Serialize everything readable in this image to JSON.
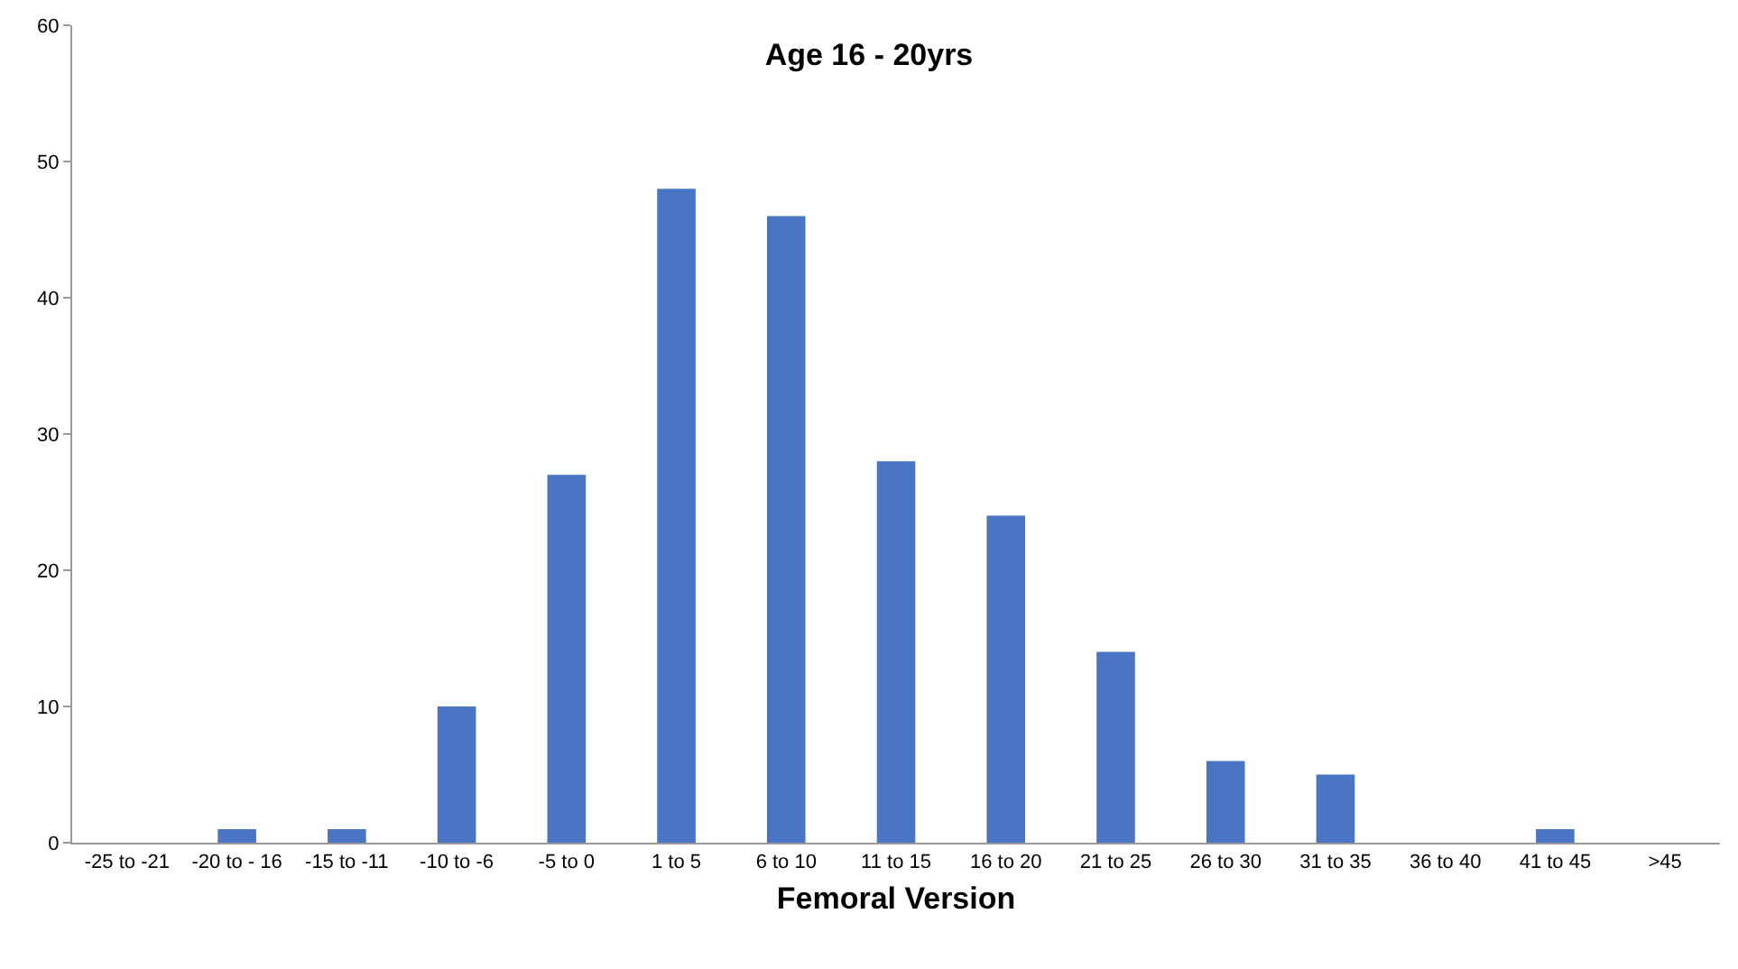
{
  "chart_data": {
    "type": "bar",
    "title": "Age 16 - 20yrs",
    "xlabel": "Femoral Version",
    "categories": [
      "-25 to -21",
      "-20 to - 16",
      "-15 to -11",
      "-10 to -6",
      "-5 to 0",
      "1 to 5",
      "6 to 10",
      "11 to 15",
      "16 to 20",
      "21 to 25",
      "26 to 30",
      "31 to 35",
      "36 to 40",
      "41 to 45",
      ">45"
    ],
    "values": [
      0,
      1,
      1,
      10,
      27,
      48,
      46,
      28,
      24,
      14,
      6,
      5,
      0,
      1,
      0
    ],
    "color": "#4a74c4",
    "ylim": [
      0,
      60
    ],
    "yticks": [
      0,
      10,
      20,
      30,
      40,
      50,
      60
    ]
  }
}
